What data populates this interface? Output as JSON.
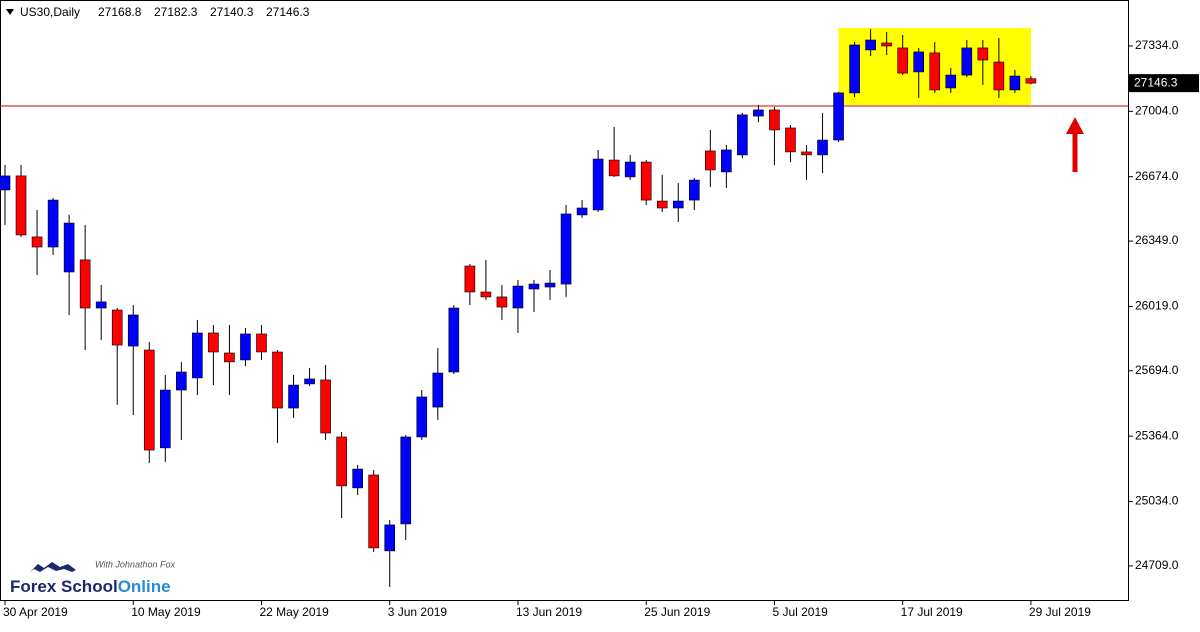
{
  "chart_data": {
    "type": "candlestick",
    "title": "US30,Daily",
    "categories": [
      "30 Apr 2019",
      null,
      null,
      null,
      null,
      null,
      null,
      null,
      "10 May 2019",
      null,
      null,
      null,
      null,
      null,
      null,
      null,
      "22 May 2019",
      null,
      null,
      null,
      null,
      null,
      null,
      null,
      "3 Jun 2019",
      null,
      null,
      null,
      null,
      null,
      null,
      null,
      "13 Jun 2019",
      null,
      null,
      null,
      null,
      null,
      null,
      null,
      "25 Jun 2019",
      null,
      null,
      null,
      null,
      null,
      null,
      null,
      "5 Jul 2019",
      null,
      null,
      null,
      null,
      null,
      null,
      null,
      "17 Jul 2019",
      null,
      null,
      null,
      null,
      null,
      null,
      null,
      "29 Jul 2019"
    ],
    "open": [
      26607,
      26678,
      26370,
      26319,
      26193,
      26254,
      26011,
      26001,
      25819,
      25799,
      25305,
      25597,
      25658,
      25885,
      25784,
      25749,
      25880,
      25789,
      25506,
      25628,
      25648,
      25360,
      25103,
      25168,
      24785,
      24921,
      25360,
      25511,
      25688,
      26223,
      26092,
      26067,
      26011,
      26107,
      26117,
      26132,
      26481,
      26506,
      26758,
      26673,
      26748,
      26551,
      26516,
      26556,
      26804,
      26698,
      26784,
      26980,
      27011,
      26920,
      26799,
      26784,
      26859,
      27097,
      27314,
      27349,
      27324,
      27203,
      27299,
      27122,
      27187,
      27324,
      27253,
      27112,
      27168.8
    ],
    "high": [
      26733,
      26733,
      26506,
      26567,
      26481,
      26430,
      26127,
      26011,
      26026,
      25840,
      25673,
      25739,
      25951,
      25925,
      25925,
      25910,
      25925,
      25799,
      25673,
      25708,
      25723,
      25385,
      25219,
      25193,
      24941,
      25370,
      25597,
      25809,
      26026,
      26233,
      26254,
      26127,
      26153,
      26153,
      26203,
      26531,
      26556,
      26809,
      26925,
      26784,
      26758,
      26683,
      26642,
      26668,
      26910,
      26834,
      26996,
      27036,
      27026,
      26935,
      26834,
      26996,
      27102,
      27354,
      27420,
      27405,
      27389,
      27324,
      27354,
      27223,
      27364,
      27364,
      27374,
      27213,
      27182.3
    ],
    "low": [
      26430,
      26370,
      26178,
      26279,
      25976,
      25799,
      25850,
      25522,
      25471,
      25229,
      25234,
      25345,
      25572,
      25622,
      25572,
      25718,
      25749,
      25330,
      25456,
      25617,
      25345,
      24951,
      25067,
      24779,
      24603,
      24840,
      25345,
      25446,
      25678,
      26026,
      26052,
      25951,
      25885,
      25991,
      26052,
      26067,
      26466,
      26496,
      26673,
      26657,
      26531,
      26496,
      26445,
      26506,
      26622,
      26617,
      26768,
      26950,
      26733,
      26748,
      26657,
      26693,
      26849,
      27076,
      27283,
      27288,
      27187,
      27071,
      27097,
      27097,
      27177,
      27137,
      27071,
      27097,
      27140.3
    ],
    "close": [
      26678,
      26380,
      26319,
      26556,
      26440,
      26011,
      26042,
      25824,
      25976,
      25294,
      25597,
      25688,
      25885,
      25789,
      25739,
      25880,
      25789,
      25506,
      25622,
      25653,
      25380,
      25113,
      25198,
      24800,
      24916,
      25360,
      25562,
      25683,
      26011,
      26092,
      26067,
      26016,
      26122,
      26132,
      26137,
      26486,
      26516,
      26763,
      26678,
      26748,
      26556,
      26516,
      26551,
      26657,
      26708,
      26809,
      26986,
      27011,
      26910,
      26799,
      26784,
      26859,
      27097,
      27339,
      27364,
      27334,
      27197,
      27304,
      27112,
      27187,
      27324,
      27263,
      27112,
      27182,
      27146.3
    ],
    "up_color": "#0000ff",
    "down_color": "#ff0000",
    "ylim": [
      24537,
      27566
    ],
    "yticks": [
      {
        "value": 27334,
        "label": "27334.0"
      },
      {
        "value": 27004,
        "label": "27004.0"
      },
      {
        "value": 26674,
        "label": "26674.0"
      },
      {
        "value": 26349,
        "label": "26349.0"
      },
      {
        "value": 26019,
        "label": "26019.0"
      },
      {
        "value": 25694,
        "label": "25694.0"
      },
      {
        "value": 25364,
        "label": "25364.0"
      },
      {
        "value": 25034,
        "label": "25034.0"
      },
      {
        "value": 24709,
        "label": "24709.0"
      }
    ],
    "hline": {
      "value": 27031,
      "color": "#d00000"
    },
    "highlight": {
      "ylim": [
        27036,
        27425
      ],
      "bars": [
        52,
        64
      ],
      "color": "#ffff00"
    }
  },
  "logo": {
    "brand": "Forex School",
    "brand_suffix": "Online",
    "tagline": "With Johnathon Fox"
  }
}
